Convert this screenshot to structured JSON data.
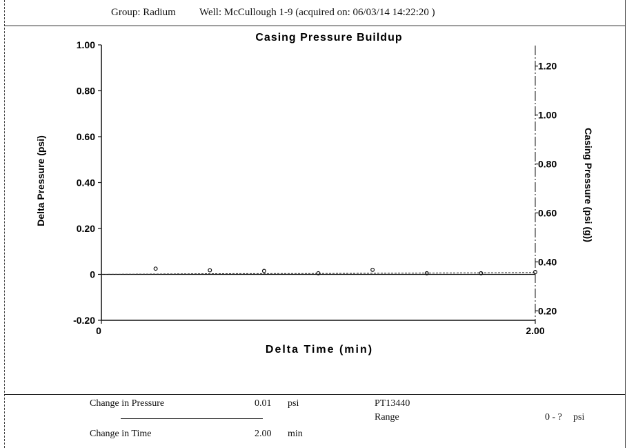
{
  "header": {
    "group_label": "Group: Radium",
    "well_label": "Well: McCullough 1-9 (acquired on: 06/03/14 14:22:20 )"
  },
  "footer": {
    "change_pressure_label": "Change in Pressure",
    "change_pressure_value": "0.01",
    "change_pressure_unit": "psi",
    "change_time_label": "Change in Time",
    "change_time_value": "2.00",
    "change_time_unit": "min",
    "gauge_id": "PT13440",
    "range_label": "Range",
    "range_value": "0 - ?",
    "range_unit": "psi"
  },
  "chart_data": {
    "type": "scatter",
    "title": "Casing Pressure Buildup",
    "xlabel": "Delta Time (min)",
    "ylabel": "Delta Pressure (psi)",
    "y2label": "Casing Pressure (psi (g))",
    "xlim": [
      0,
      2.0
    ],
    "ylim": [
      -0.2,
      1.0
    ],
    "y2lim": [
      0.15,
      1.25
    ],
    "x_ticks": [
      "0",
      "2.00"
    ],
    "y_ticks": [
      "1.00",
      "0.80",
      "0.60",
      "0.40",
      "0.20",
      "0",
      "-0.20"
    ],
    "y2_ticks": [
      "1.20",
      "1.00",
      "0.80",
      "0.60",
      "0.40",
      "0.20"
    ],
    "grid": false,
    "series": [
      {
        "style": "points",
        "x": [
          0.25,
          0.5,
          0.75,
          1.0,
          1.25,
          1.5,
          1.75,
          2.0
        ],
        "y": [
          0.025,
          0.018,
          0.015,
          0.005,
          0.02,
          0.005,
          0.005,
          0.01
        ]
      },
      {
        "style": "dashed-line",
        "x": [
          0.0,
          0.5,
          1.0,
          1.5,
          2.0
        ],
        "y": [
          0.0,
          0.003,
          0.004,
          0.006,
          0.008
        ]
      }
    ]
  }
}
